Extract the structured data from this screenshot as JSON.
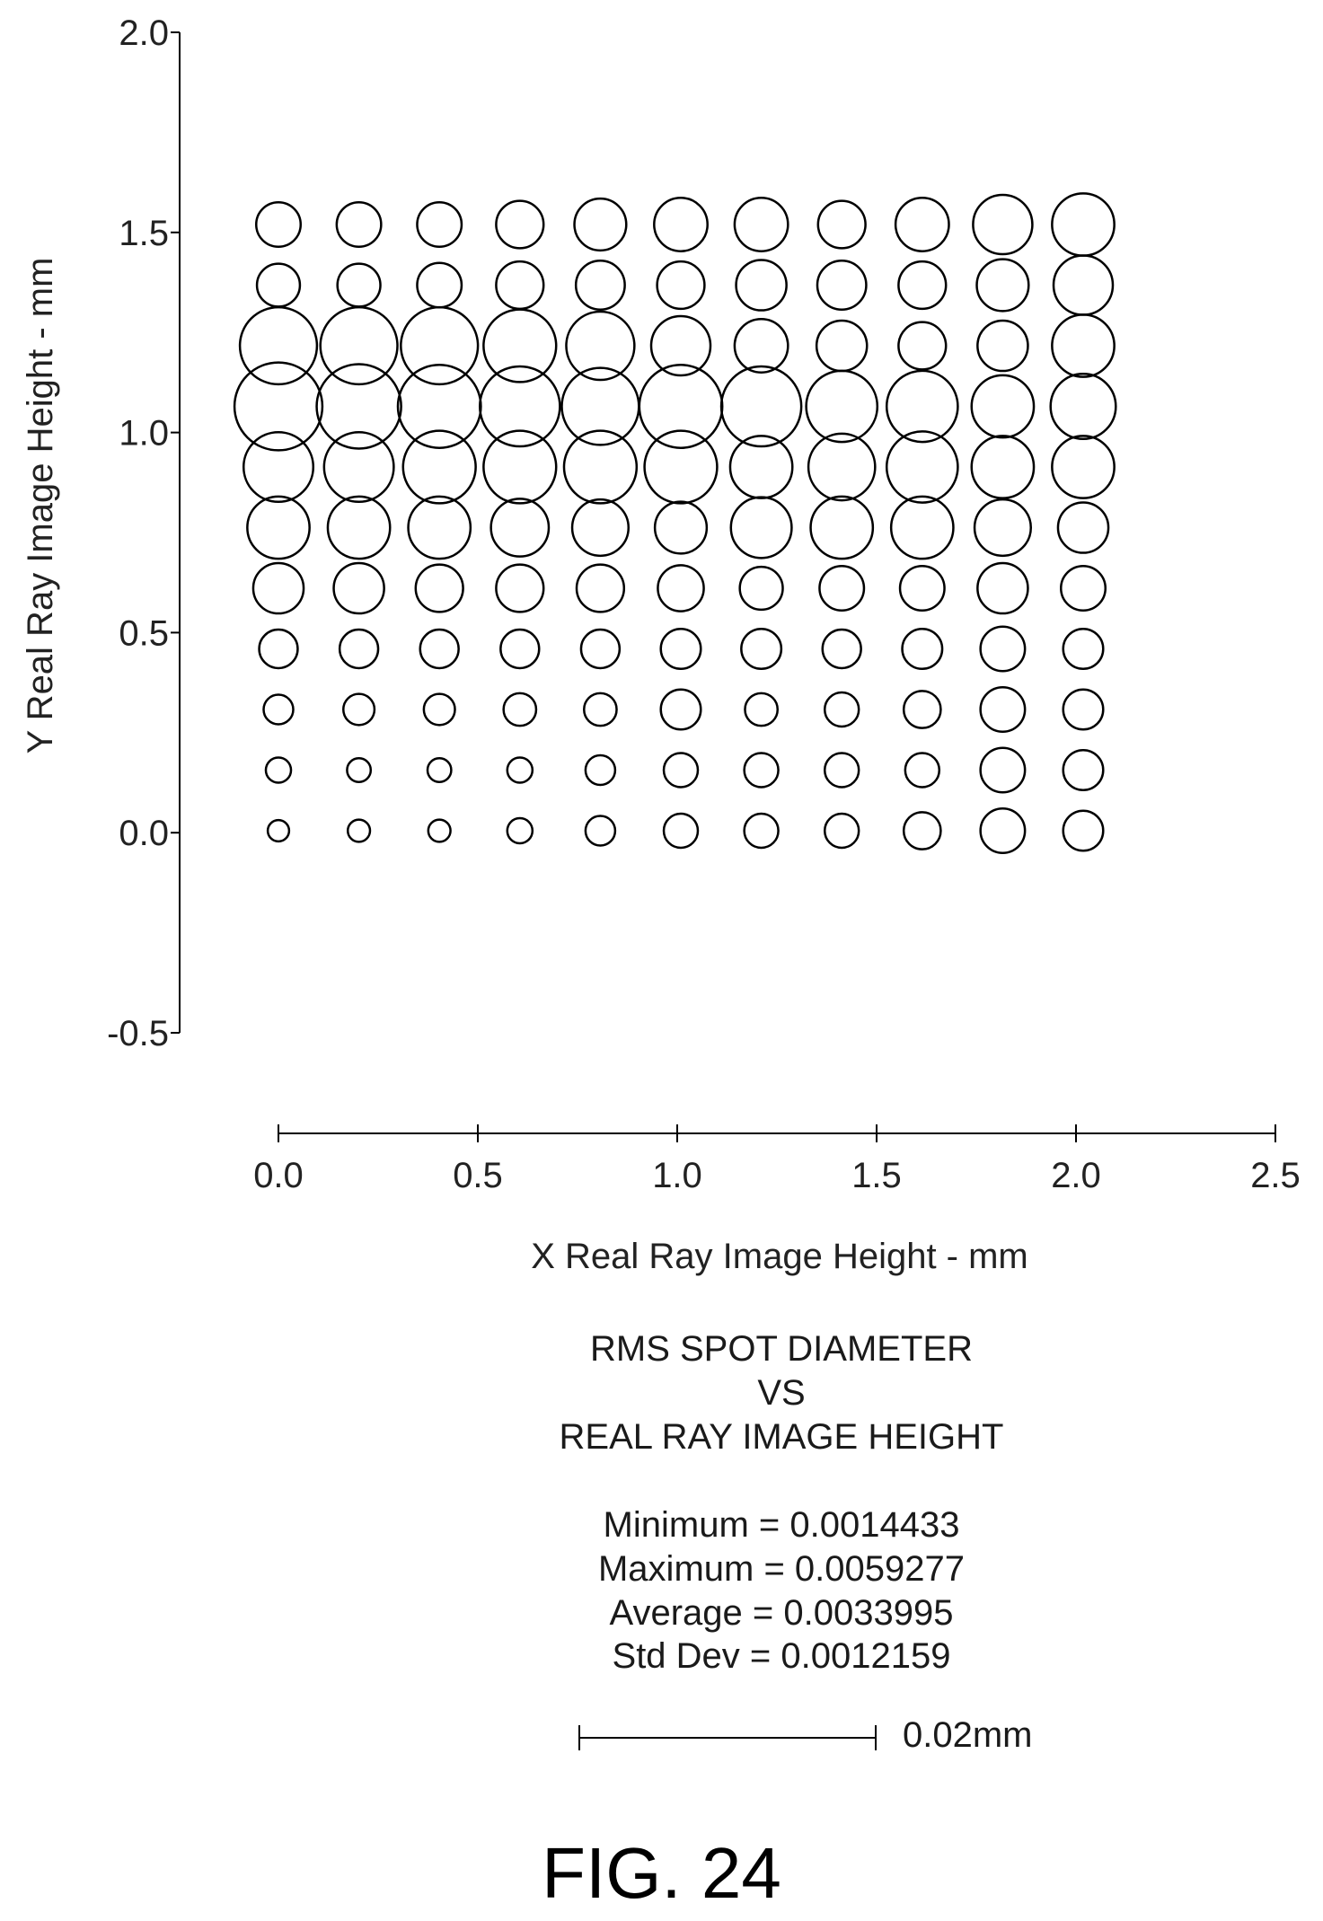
{
  "chart_data": {
    "type": "scatter",
    "title": "RMS SPOT DIAMETER",
    "title_line2": "VS",
    "title_line3": "REAL RAY IMAGE HEIGHT",
    "xlabel": "X Real Ray Image Height - mm",
    "ylabel": "Y Real Ray Image Height - mm",
    "xlim": [
      0.0,
      2.5
    ],
    "ylim": [
      -0.5,
      2.0
    ],
    "xticks": [
      0.0,
      0.5,
      1.0,
      1.5,
      2.0,
      2.5
    ],
    "yticks": [
      -0.5,
      0.0,
      0.5,
      1.0,
      1.5,
      2.0
    ],
    "xtick_labels": [
      "0.0",
      "0.5",
      "1.0",
      "1.5",
      "2.0",
      "2.5"
    ],
    "ytick_labels": [
      "-0.5",
      "0.0",
      "0.5",
      "1.0",
      "1.5",
      "2.0"
    ],
    "grid": false,
    "marker": "open-circle",
    "marker_size_meaning": "RMS spot diameter",
    "x": [
      0.0,
      0.2,
      0.4,
      0.6,
      0.8,
      1.0,
      1.2,
      1.4,
      1.6,
      1.8,
      2.0
    ],
    "y": [
      0.0,
      0.15,
      0.3,
      0.45,
      0.6,
      0.75,
      0.9,
      1.05,
      1.2,
      1.35,
      1.5
    ],
    "rms_spot_diameter_mm": [
      [
        0.00144,
        0.0015,
        0.0015,
        0.0017,
        0.002,
        0.0023,
        0.0023,
        0.0023,
        0.0025,
        0.003,
        0.0027
      ],
      [
        0.0017,
        0.0016,
        0.0016,
        0.0017,
        0.002,
        0.0023,
        0.0023,
        0.0023,
        0.0023,
        0.003,
        0.0027
      ],
      [
        0.002,
        0.0021,
        0.0021,
        0.0022,
        0.0022,
        0.0027,
        0.0022,
        0.0023,
        0.0025,
        0.003,
        0.0027
      ],
      [
        0.0026,
        0.0026,
        0.0026,
        0.0026,
        0.0026,
        0.0027,
        0.0027,
        0.0026,
        0.0027,
        0.003,
        0.0027
      ],
      [
        0.0034,
        0.0034,
        0.0032,
        0.0032,
        0.0032,
        0.0031,
        0.0029,
        0.003,
        0.003,
        0.0034,
        0.003
      ],
      [
        0.0042,
        0.0042,
        0.0042,
        0.0039,
        0.0038,
        0.0035,
        0.0041,
        0.0042,
        0.0042,
        0.0038,
        0.0034
      ],
      [
        0.0047,
        0.0047,
        0.0049,
        0.0049,
        0.0049,
        0.0049,
        0.0042,
        0.0045,
        0.0048,
        0.0042,
        0.0042
      ],
      [
        0.00593,
        0.0057,
        0.0056,
        0.0054,
        0.0052,
        0.0056,
        0.0054,
        0.0048,
        0.0048,
        0.0042,
        0.0044
      ],
      [
        0.0052,
        0.0052,
        0.0052,
        0.0049,
        0.0046,
        0.004,
        0.0036,
        0.0034,
        0.0032,
        0.0034,
        0.0042
      ],
      [
        0.0029,
        0.0029,
        0.003,
        0.0032,
        0.0033,
        0.0032,
        0.0034,
        0.0033,
        0.0032,
        0.0035,
        0.004
      ],
      [
        0.003,
        0.003,
        0.003,
        0.0032,
        0.0035,
        0.0036,
        0.0036,
        0.0032,
        0.0036,
        0.004,
        0.0042
      ]
    ],
    "stats": {
      "minimum_label": "Minimum = 0.0014433",
      "maximum_label": "Maximum = 0.0059277",
      "average_label": "Average = 0.0033995",
      "stddev_label": "Std Dev = 0.0012159"
    },
    "scale_bar": {
      "label": "0.02mm",
      "value_mm": 0.02
    }
  },
  "figure_label": "FIG. 24"
}
